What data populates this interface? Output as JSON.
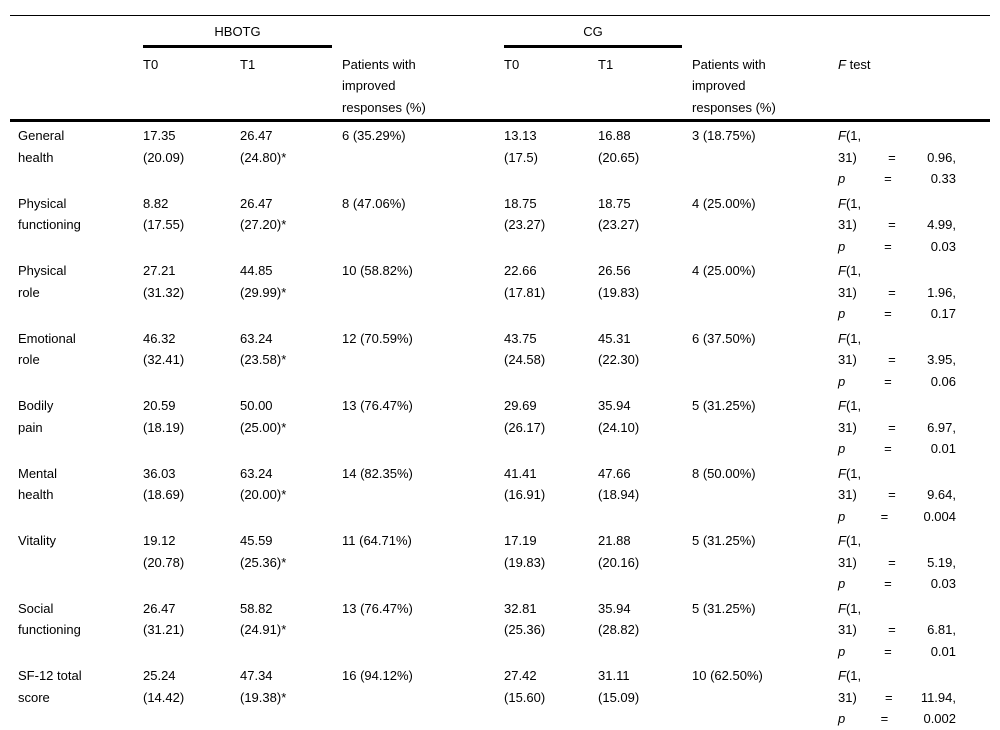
{
  "colors": {
    "background": "#ffffff",
    "text": "#000000",
    "rules": "#000000"
  },
  "table": {
    "groups": [
      {
        "label": "HBOTG"
      },
      {
        "label": "CG"
      }
    ],
    "headers": {
      "t0": "T0",
      "t1": "T1",
      "improved_line1": "Patients with",
      "improved_line2": "improved",
      "improved_line3": "responses (%)",
      "f_test_italic": "F",
      "f_test_rest": " test"
    },
    "rows": [
      {
        "label_lines": [
          "General",
          "health"
        ],
        "cells": {
          "h_t0": [
            "17.35",
            "(20.09)"
          ],
          "h_t1": [
            "26.47",
            "(24.80)*"
          ],
          "h_imp": [
            "6 (35.29%)"
          ],
          "c_t0": [
            "13.13",
            "(17.5)"
          ],
          "c_t1": [
            "16.88",
            "(20.65)"
          ],
          "c_imp": [
            "3 (18.75%)"
          ]
        },
        "f_lines": [
          [
            "F(1,"
          ],
          [
            "31)",
            "=",
            "0.96,"
          ],
          [
            "p",
            "=",
            "0.33"
          ]
        ]
      },
      {
        "label_lines": [
          "Physical",
          "functioning"
        ],
        "cells": {
          "h_t0": [
            "8.82",
            "(17.55)"
          ],
          "h_t1": [
            "26.47",
            "(27.20)*"
          ],
          "h_imp": [
            "8 (47.06%)"
          ],
          "c_t0": [
            "18.75",
            "(23.27)"
          ],
          "c_t1": [
            "18.75",
            "(23.27)"
          ],
          "c_imp": [
            "4 (25.00%)"
          ]
        },
        "f_lines": [
          [
            "F(1,"
          ],
          [
            "31)",
            "=",
            "4.99,"
          ],
          [
            "p",
            "=",
            "0.03"
          ]
        ]
      },
      {
        "label_lines": [
          "Physical",
          "role"
        ],
        "cells": {
          "h_t0": [
            "27.21",
            "(31.32)"
          ],
          "h_t1": [
            "44.85",
            "(29.99)*"
          ],
          "h_imp": [
            "10 (58.82%)"
          ],
          "c_t0": [
            "22.66",
            "(17.81)"
          ],
          "c_t1": [
            "26.56",
            "(19.83)"
          ],
          "c_imp": [
            "4 (25.00%)"
          ]
        },
        "f_lines": [
          [
            "F(1,"
          ],
          [
            "31)",
            "=",
            "1.96,"
          ],
          [
            "p",
            "=",
            "0.17"
          ]
        ]
      },
      {
        "label_lines": [
          "Emotional",
          "role"
        ],
        "cells": {
          "h_t0": [
            "46.32",
            "(32.41)"
          ],
          "h_t1": [
            "63.24",
            "(23.58)*"
          ],
          "h_imp": [
            "12 (70.59%)"
          ],
          "c_t0": [
            "43.75",
            "(24.58)"
          ],
          "c_t1": [
            "45.31",
            "(22.30)"
          ],
          "c_imp": [
            "6 (37.50%)"
          ]
        },
        "f_lines": [
          [
            "F(1,"
          ],
          [
            "31)",
            "=",
            "3.95,"
          ],
          [
            "p",
            "=",
            "0.06"
          ]
        ]
      },
      {
        "label_lines": [
          "Bodily",
          "pain"
        ],
        "cells": {
          "h_t0": [
            "20.59",
            "(18.19)"
          ],
          "h_t1": [
            "50.00",
            "(25.00)*"
          ],
          "h_imp": [
            "13 (76.47%)"
          ],
          "c_t0": [
            "29.69",
            "(26.17)"
          ],
          "c_t1": [
            "35.94",
            "(24.10)"
          ],
          "c_imp": [
            "5 (31.25%)"
          ]
        },
        "f_lines": [
          [
            "F(1,"
          ],
          [
            "31)",
            "=",
            "6.97,"
          ],
          [
            "p",
            "=",
            "0.01"
          ]
        ]
      },
      {
        "label_lines": [
          "Mental",
          "health"
        ],
        "cells": {
          "h_t0": [
            "36.03",
            "(18.69)"
          ],
          "h_t1": [
            "63.24",
            "(20.00)*"
          ],
          "h_imp": [
            "14 (82.35%)"
          ],
          "c_t0": [
            "41.41",
            "(16.91)"
          ],
          "c_t1": [
            "47.66",
            "(18.94)"
          ],
          "c_imp": [
            "8 (50.00%)"
          ]
        },
        "f_lines": [
          [
            "F(1,"
          ],
          [
            "31)",
            "=",
            "9.64,"
          ],
          [
            "p",
            "=",
            "0.004"
          ]
        ]
      },
      {
        "label_lines": [
          "Vitality"
        ],
        "cells": {
          "h_t0": [
            "19.12",
            "(20.78)"
          ],
          "h_t1": [
            "45.59",
            "(25.36)*"
          ],
          "h_imp": [
            "11 (64.71%)"
          ],
          "c_t0": [
            "17.19",
            "(19.83)"
          ],
          "c_t1": [
            "21.88",
            "(20.16)"
          ],
          "c_imp": [
            "5 (31.25%)"
          ]
        },
        "f_lines": [
          [
            "F(1,"
          ],
          [
            "31)",
            "=",
            "5.19,"
          ],
          [
            "p",
            "=",
            "0.03"
          ]
        ]
      },
      {
        "label_lines": [
          "Social",
          "functioning"
        ],
        "cells": {
          "h_t0": [
            "26.47",
            "(31.21)"
          ],
          "h_t1": [
            "58.82",
            "(24.91)*"
          ],
          "h_imp": [
            "13 (76.47%)"
          ],
          "c_t0": [
            "32.81",
            "(25.36)"
          ],
          "c_t1": [
            "35.94",
            "(28.82)"
          ],
          "c_imp": [
            "5 (31.25%)"
          ]
        },
        "f_lines": [
          [
            "F(1,"
          ],
          [
            "31)",
            "=",
            "6.81,"
          ],
          [
            "p",
            "=",
            "0.01"
          ]
        ]
      },
      {
        "label_lines": [
          "SF-12 total",
          "score"
        ],
        "cells": {
          "h_t0": [
            "25.24",
            "(14.42)"
          ],
          "h_t1": [
            "47.34",
            "(19.38)*"
          ],
          "h_imp": [
            "16 (94.12%)"
          ],
          "c_t0": [
            "27.42",
            "(15.60)"
          ],
          "c_t1": [
            "31.11",
            "(15.09)"
          ],
          "c_imp": [
            "10 (62.50%)"
          ]
        },
        "f_lines": [
          [
            "F(1,"
          ],
          [
            "31)",
            "=",
            "11.94,"
          ],
          [
            "p",
            "=",
            "0.002"
          ]
        ]
      }
    ]
  }
}
